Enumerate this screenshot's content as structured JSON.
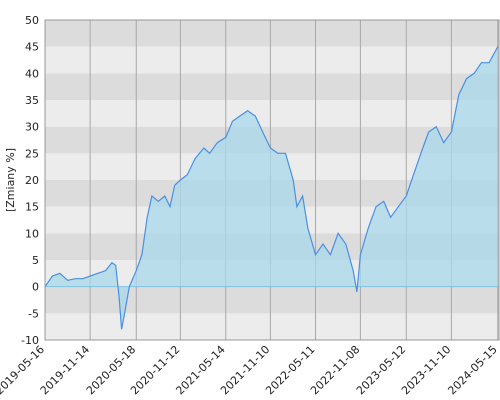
{
  "chart_data": {
    "type": "area",
    "y_label": "[Zmiany %]",
    "color": "#4a90e2",
    "fill_color": "#a8d8ea",
    "x": [
      "2019-05-16",
      "2019-06-15",
      "2019-07-15",
      "2019-08-15",
      "2019-09-15",
      "2019-10-15",
      "2019-11-15",
      "2019-12-15",
      "2020-01-15",
      "2020-02-10",
      "2020-02-25",
      "2020-03-10",
      "2020-03-20",
      "2020-04-01",
      "2020-04-20",
      "2020-05-18",
      "2020-06-10",
      "2020-07-01",
      "2020-07-20",
      "2020-08-15",
      "2020-09-10",
      "2020-10-01",
      "2020-10-20",
      "2020-11-12",
      "2020-12-10",
      "2021-01-10",
      "2021-02-15",
      "2021-03-10",
      "2021-04-10",
      "2021-05-14",
      "2021-06-10",
      "2021-07-10",
      "2021-08-10",
      "2021-09-10",
      "2021-10-10",
      "2021-11-10",
      "2021-12-10",
      "2022-01-10",
      "2022-02-10",
      "2022-02-25",
      "2022-03-20",
      "2022-04-10",
      "2022-05-11",
      "2022-06-10",
      "2022-07-10",
      "2022-08-10",
      "2022-09-10",
      "2022-10-10",
      "2022-10-25",
      "2022-11-08",
      "2022-12-10",
      "2023-01-10",
      "2023-02-10",
      "2023-03-10",
      "2023-04-10",
      "2023-05-12",
      "2023-06-10",
      "2023-07-10",
      "2023-08-10",
      "2023-09-10",
      "2023-10-10",
      "2023-11-10",
      "2023-12-10",
      "2024-01-10",
      "2024-02-10",
      "2024-03-10",
      "2024-04-10",
      "2024-05-15"
    ],
    "values": [
      0,
      2,
      2.5,
      1.2,
      1.5,
      1.5,
      2,
      2.5,
      3,
      4.5,
      4,
      -2,
      -8,
      -5,
      0,
      3,
      6,
      13,
      17,
      16,
      17,
      15,
      19,
      20,
      21,
      24,
      26,
      25,
      27,
      28,
      31,
      32,
      33,
      32,
      29,
      26,
      25,
      25,
      20,
      15,
      17,
      11,
      6,
      8,
      6,
      10,
      8,
      3,
      -1,
      6,
      11,
      15,
      16,
      13,
      15,
      17,
      21,
      25,
      29,
      30,
      27,
      29,
      36,
      39,
      40,
      42,
      42,
      45
    ],
    "xlim": [
      "2019-05-16",
      "2024-05-20"
    ],
    "xticks": [
      "2019-05-16",
      "2019-11-14",
      "2020-05-18",
      "2020-11-12",
      "2021-05-14",
      "2021-11-10",
      "2022-05-11",
      "2022-11-08",
      "2023-05-12",
      "2023-11-10",
      "2024-05-15"
    ],
    "ylim": [
      -10,
      50
    ],
    "yticks": [
      -10,
      -5,
      0,
      5,
      10,
      15,
      20,
      25,
      30,
      35,
      40,
      45,
      50
    ],
    "grid": true
  }
}
